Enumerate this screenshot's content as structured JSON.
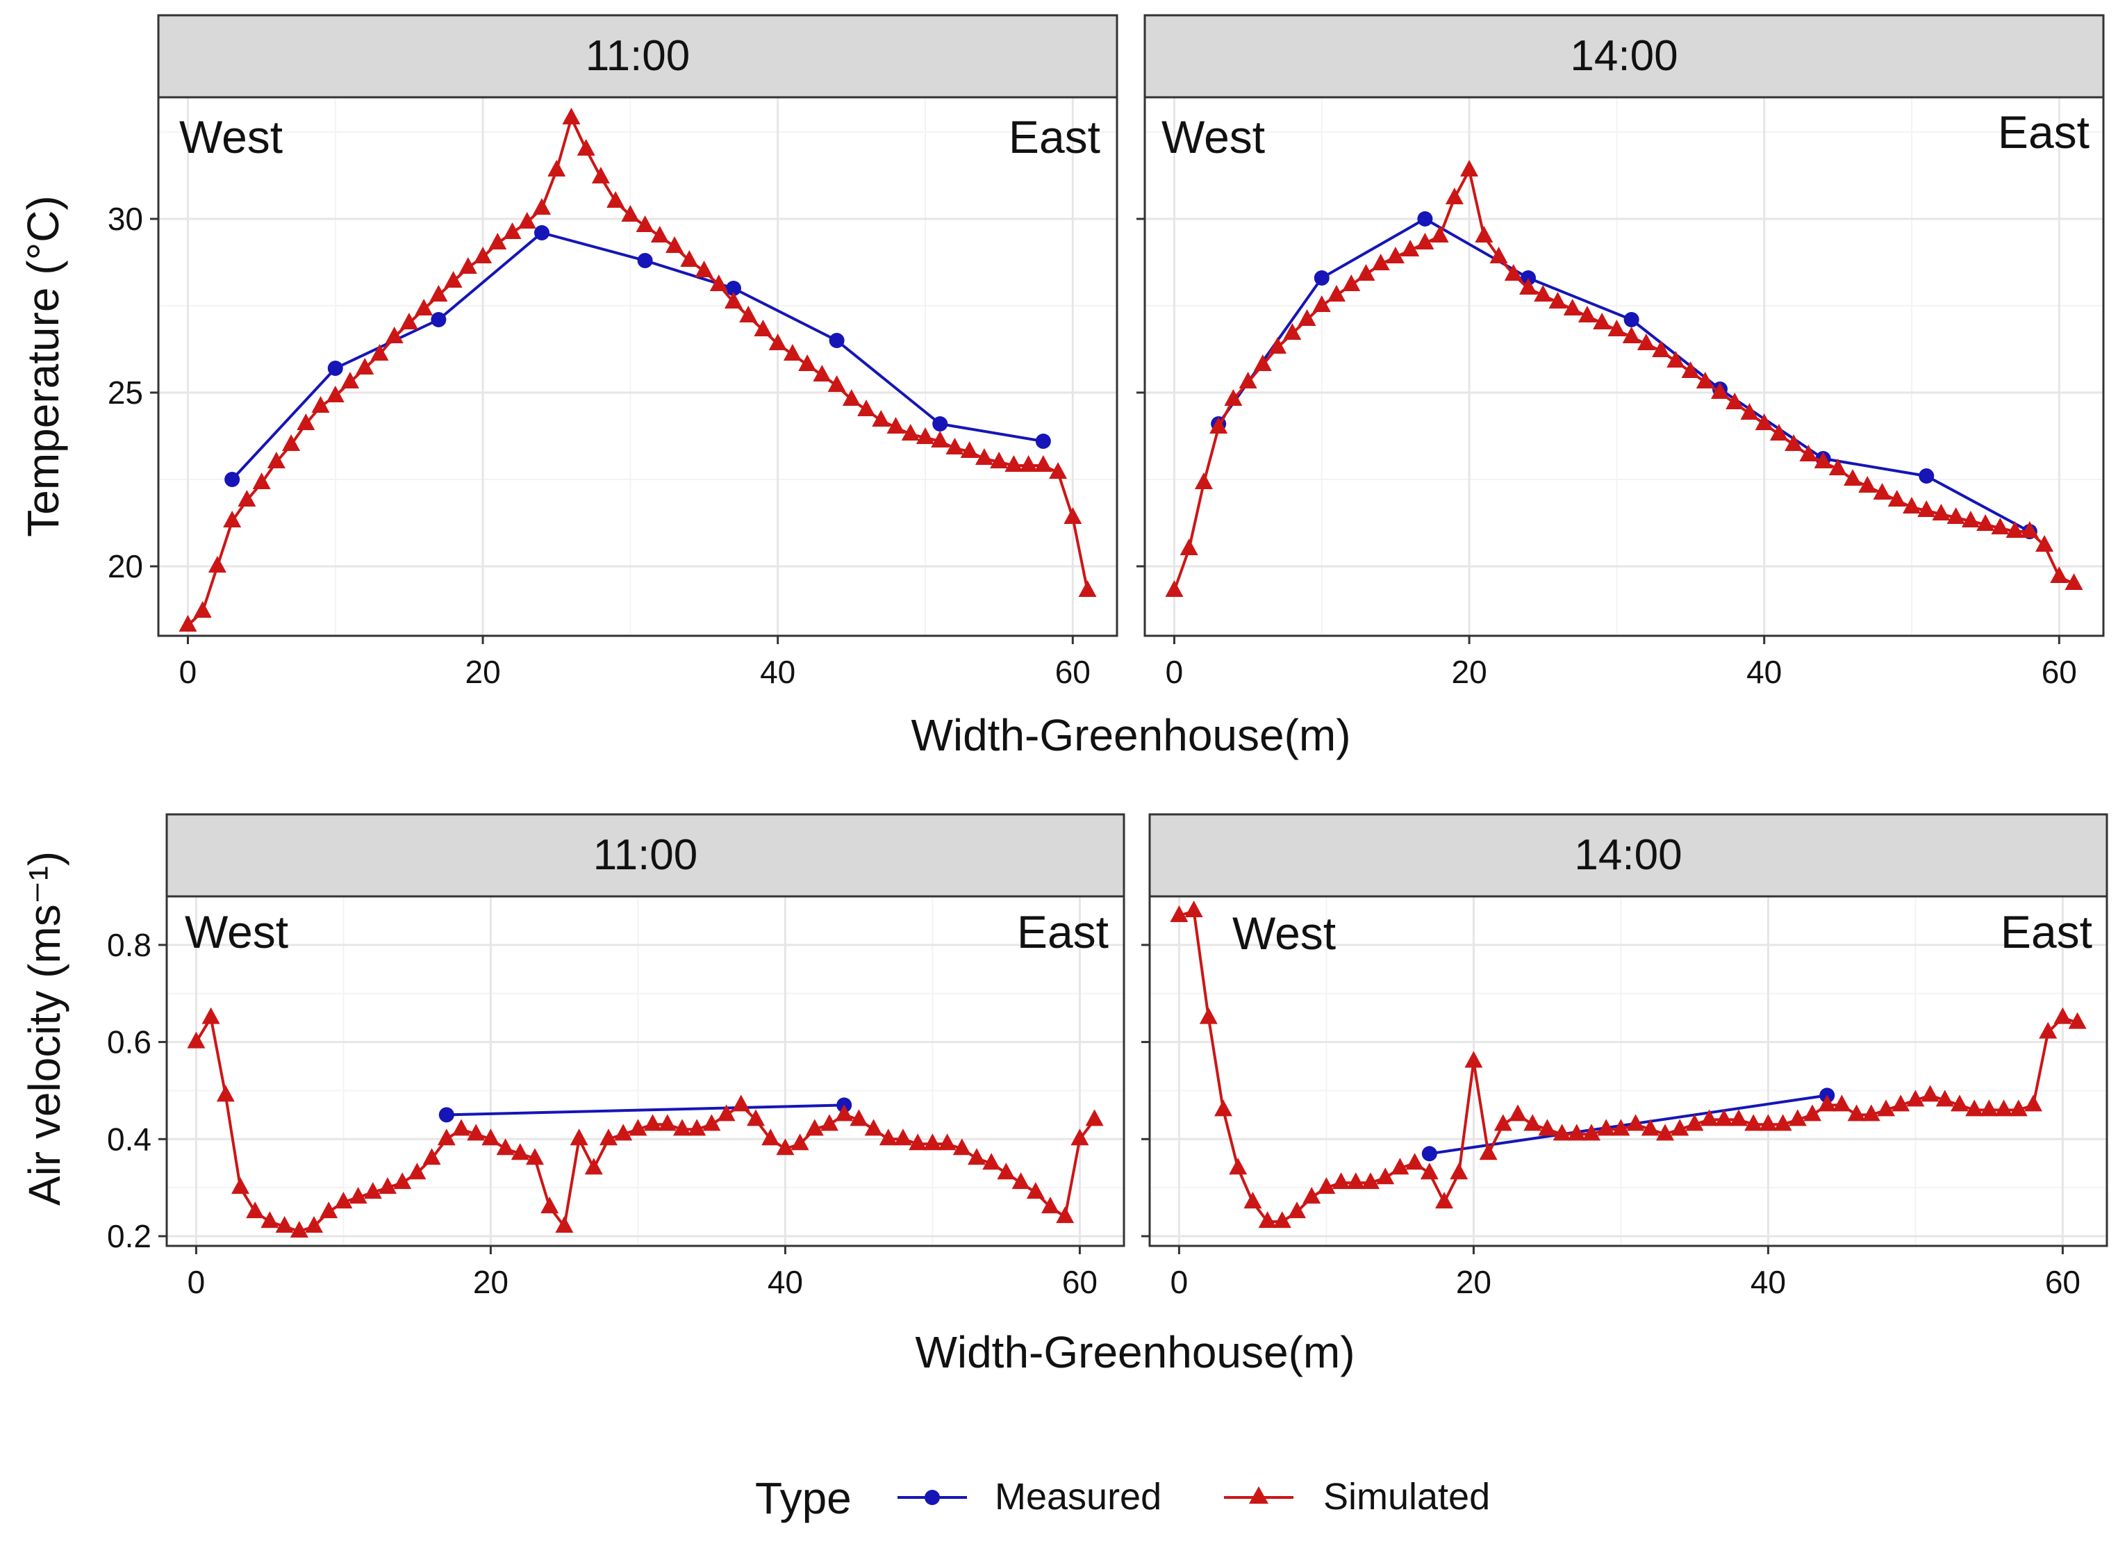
{
  "colors": {
    "measured": "#1515b8",
    "simulated": "#cc1616",
    "strip": "#d9d9d9",
    "grid_major": "#e6e6e6",
    "grid_minor": "#f3f3f3",
    "axis": "#333333"
  },
  "legend": {
    "title": "Type",
    "measured_label": "Measured",
    "simulated_label": "Simulated",
    "measured_icon": "circle-marker-icon",
    "simulated_icon": "triangle-marker-icon"
  },
  "chart_data": [
    {
      "type": "line",
      "panel_id": "temp_1100",
      "title": "11:00",
      "ylabel": "Temperature (°C)",
      "xlabel": "Width-Greenhouse(m)",
      "xlim": [
        -2,
        63
      ],
      "ylim": [
        18,
        33.5
      ],
      "x_ticks": [
        0,
        20,
        40,
        60
      ],
      "y_ticks": [
        20,
        25,
        30
      ],
      "y_tick_labels": [
        "20",
        "25",
        "30"
      ],
      "annotations": {
        "left": "West",
        "right": "East"
      },
      "series": [
        {
          "name": "Measured",
          "x": [
            3,
            10,
            17,
            24,
            31,
            37,
            44,
            51,
            58
          ],
          "y": [
            22.5,
            25.7,
            27.1,
            29.6,
            28.8,
            28.0,
            26.5,
            24.1,
            23.6
          ]
        },
        {
          "name": "Simulated",
          "x": [
            0,
            1,
            2,
            3,
            4,
            5,
            6,
            7,
            8,
            9,
            10,
            11,
            12,
            13,
            14,
            15,
            16,
            17,
            18,
            19,
            20,
            21,
            22,
            23,
            24,
            25,
            26,
            27,
            28,
            29,
            30,
            31,
            32,
            33,
            34,
            35,
            36,
            37,
            38,
            39,
            40,
            41,
            42,
            43,
            44,
            45,
            46,
            47,
            48,
            49,
            50,
            51,
            52,
            53,
            54,
            55,
            56,
            57,
            58,
            59,
            60,
            61
          ],
          "y": [
            18.3,
            18.7,
            20.0,
            21.3,
            21.9,
            22.4,
            23.0,
            23.5,
            24.1,
            24.6,
            24.9,
            25.3,
            25.7,
            26.1,
            26.6,
            27.0,
            27.4,
            27.8,
            28.2,
            28.6,
            28.9,
            29.3,
            29.6,
            29.9,
            30.3,
            31.4,
            32.9,
            32.0,
            31.2,
            30.5,
            30.1,
            29.8,
            29.5,
            29.2,
            28.8,
            28.5,
            28.1,
            27.6,
            27.2,
            26.8,
            26.4,
            26.1,
            25.8,
            25.5,
            25.2,
            24.8,
            24.5,
            24.2,
            24.0,
            23.8,
            23.7,
            23.6,
            23.4,
            23.3,
            23.1,
            23.0,
            22.9,
            22.9,
            22.9,
            22.7,
            21.4,
            19.3
          ]
        }
      ]
    },
    {
      "type": "line",
      "panel_id": "temp_1400",
      "title": "14:00",
      "ylabel": "",
      "xlabel": "Width-Greenhouse(m)",
      "xlim": [
        -2,
        63
      ],
      "ylim": [
        18,
        33.5
      ],
      "x_ticks": [
        0,
        20,
        40,
        60
      ],
      "y_ticks": [
        20,
        25,
        30
      ],
      "y_tick_labels": [],
      "annotations": {
        "left": "West",
        "right": "East"
      },
      "series": [
        {
          "name": "Measured",
          "x": [
            3,
            10,
            17,
            24,
            31,
            37,
            44,
            51,
            58
          ],
          "y": [
            24.1,
            28.3,
            30.0,
            28.3,
            27.1,
            25.1,
            23.1,
            22.6,
            21.0
          ]
        },
        {
          "name": "Simulated",
          "x": [
            0,
            1,
            2,
            3,
            4,
            5,
            6,
            7,
            8,
            9,
            10,
            11,
            12,
            13,
            14,
            15,
            16,
            17,
            18,
            19,
            20,
            21,
            22,
            23,
            24,
            25,
            26,
            27,
            28,
            29,
            30,
            31,
            32,
            33,
            34,
            35,
            36,
            37,
            38,
            39,
            40,
            41,
            42,
            43,
            44,
            45,
            46,
            47,
            48,
            49,
            50,
            51,
            52,
            53,
            54,
            55,
            56,
            57,
            58,
            59,
            60,
            61
          ],
          "y": [
            19.3,
            20.5,
            22.4,
            24.0,
            24.8,
            25.3,
            25.8,
            26.3,
            26.7,
            27.1,
            27.5,
            27.8,
            28.1,
            28.4,
            28.7,
            28.9,
            29.1,
            29.3,
            29.5,
            30.6,
            31.4,
            29.5,
            28.9,
            28.4,
            28.0,
            27.8,
            27.6,
            27.4,
            27.2,
            27.0,
            26.8,
            26.6,
            26.4,
            26.2,
            25.9,
            25.6,
            25.3,
            25.0,
            24.7,
            24.4,
            24.1,
            23.8,
            23.5,
            23.2,
            23.0,
            22.8,
            22.5,
            22.3,
            22.1,
            21.9,
            21.7,
            21.6,
            21.5,
            21.4,
            21.3,
            21.2,
            21.1,
            21.0,
            21.0,
            20.6,
            19.7,
            19.5
          ]
        }
      ]
    },
    {
      "type": "line",
      "panel_id": "vel_1100",
      "title": "11:00",
      "ylabel": "Air velocity  (ms⁻¹)",
      "xlabel": "Width-Greenhouse(m)",
      "xlim": [
        -2,
        63
      ],
      "ylim": [
        0.18,
        0.9
      ],
      "x_ticks": [
        0,
        20,
        40,
        60
      ],
      "y_ticks": [
        0.2,
        0.4,
        0.6,
        0.8
      ],
      "y_tick_labels": [
        "0.2",
        "0.4",
        "0.6",
        "0.8"
      ],
      "annotations": {
        "left": "West",
        "right": "East"
      },
      "series": [
        {
          "name": "Measured",
          "x": [
            17,
            44
          ],
          "y": [
            0.45,
            0.47
          ]
        },
        {
          "name": "Simulated",
          "x": [
            0,
            1,
            2,
            3,
            4,
            5,
            6,
            7,
            8,
            9,
            10,
            11,
            12,
            13,
            14,
            15,
            16,
            17,
            18,
            19,
            20,
            21,
            22,
            23,
            24,
            25,
            26,
            27,
            28,
            29,
            30,
            31,
            32,
            33,
            34,
            35,
            36,
            37,
            38,
            39,
            40,
            41,
            42,
            43,
            44,
            45,
            46,
            47,
            48,
            49,
            50,
            51,
            52,
            53,
            54,
            55,
            56,
            57,
            58,
            59,
            60,
            61
          ],
          "y": [
            0.6,
            0.65,
            0.49,
            0.3,
            0.25,
            0.23,
            0.22,
            0.21,
            0.22,
            0.25,
            0.27,
            0.28,
            0.29,
            0.3,
            0.31,
            0.33,
            0.36,
            0.4,
            0.42,
            0.41,
            0.4,
            0.38,
            0.37,
            0.36,
            0.26,
            0.22,
            0.4,
            0.34,
            0.4,
            0.41,
            0.42,
            0.43,
            0.43,
            0.42,
            0.42,
            0.43,
            0.45,
            0.47,
            0.44,
            0.4,
            0.38,
            0.39,
            0.42,
            0.43,
            0.45,
            0.44,
            0.42,
            0.4,
            0.4,
            0.39,
            0.39,
            0.39,
            0.38,
            0.36,
            0.35,
            0.33,
            0.31,
            0.29,
            0.26,
            0.24,
            0.4,
            0.44
          ]
        }
      ]
    },
    {
      "type": "line",
      "panel_id": "vel_1400",
      "title": "14:00",
      "ylabel": "",
      "xlabel": "Width-Greenhouse(m)",
      "xlim": [
        -2,
        63
      ],
      "ylim": [
        0.18,
        0.9
      ],
      "x_ticks": [
        0,
        20,
        40,
        60
      ],
      "y_ticks": [
        0.2,
        0.4,
        0.6,
        0.8
      ],
      "y_tick_labels": [],
      "annotations": {
        "left": "West",
        "right": "East"
      },
      "series": [
        {
          "name": "Measured",
          "x": [
            17,
            44
          ],
          "y": [
            0.37,
            0.49
          ]
        },
        {
          "name": "Simulated",
          "x": [
            0,
            1,
            2,
            3,
            4,
            5,
            6,
            7,
            8,
            9,
            10,
            11,
            12,
            13,
            14,
            15,
            16,
            17,
            18,
            19,
            20,
            21,
            22,
            23,
            24,
            25,
            26,
            27,
            28,
            29,
            30,
            31,
            32,
            33,
            34,
            35,
            36,
            37,
            38,
            39,
            40,
            41,
            42,
            43,
            44,
            45,
            46,
            47,
            48,
            49,
            50,
            51,
            52,
            53,
            54,
            55,
            56,
            57,
            58,
            59,
            60,
            61
          ],
          "y": [
            0.86,
            0.87,
            0.65,
            0.46,
            0.34,
            0.27,
            0.23,
            0.23,
            0.25,
            0.28,
            0.3,
            0.31,
            0.31,
            0.31,
            0.32,
            0.34,
            0.35,
            0.33,
            0.27,
            0.33,
            0.56,
            0.37,
            0.43,
            0.45,
            0.43,
            0.42,
            0.41,
            0.41,
            0.41,
            0.42,
            0.42,
            0.43,
            0.42,
            0.41,
            0.42,
            0.43,
            0.44,
            0.44,
            0.44,
            0.43,
            0.43,
            0.43,
            0.44,
            0.45,
            0.47,
            0.47,
            0.45,
            0.45,
            0.46,
            0.47,
            0.48,
            0.49,
            0.48,
            0.47,
            0.46,
            0.46,
            0.46,
            0.46,
            0.47,
            0.62,
            0.65,
            0.64
          ]
        }
      ]
    }
  ]
}
